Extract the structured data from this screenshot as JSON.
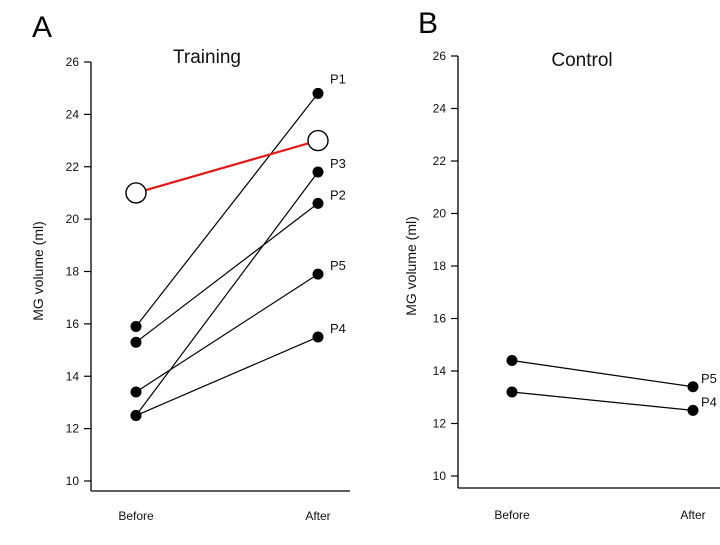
{
  "chart_data": [
    {
      "type": "line",
      "panel_letter": "A",
      "title": "Training",
      "xlabel": "",
      "ylabel": "MG volume (ml)",
      "categories": [
        "Before",
        "After"
      ],
      "ylim": [
        10,
        26
      ],
      "yticks": [
        10,
        12,
        14,
        16,
        18,
        20,
        22,
        24,
        26
      ],
      "series": [
        {
          "name": "P1",
          "values": [
            15.9,
            24.8
          ],
          "color": "#000000",
          "marker": "filled"
        },
        {
          "name": "P3",
          "values": [
            12.5,
            21.8
          ],
          "color": "#000000",
          "marker": "filled"
        },
        {
          "name": "P2",
          "values": [
            15.3,
            20.6
          ],
          "color": "#000000",
          "marker": "filled"
        },
        {
          "name": "P5",
          "values": [
            13.4,
            17.9
          ],
          "color": "#000000",
          "marker": "filled"
        },
        {
          "name": "P4",
          "values": [
            12.5,
            15.5
          ],
          "color": "#000000",
          "marker": "filled"
        },
        {
          "name": "",
          "values": [
            21.0,
            23.0
          ],
          "color": "#e01b1b",
          "marker": "open"
        }
      ]
    },
    {
      "type": "line",
      "panel_letter": "B",
      "title": "Control",
      "xlabel": "",
      "ylabel": "MG volume (ml)",
      "categories": [
        "Before",
        "After"
      ],
      "ylim": [
        10,
        26
      ],
      "yticks": [
        10,
        12,
        14,
        16,
        18,
        20,
        22,
        24,
        26
      ],
      "series": [
        {
          "name": "P5",
          "values": [
            14.4,
            13.4
          ],
          "color": "#000000",
          "marker": "filled"
        },
        {
          "name": "P4",
          "values": [
            13.2,
            12.5
          ],
          "color": "#000000",
          "marker": "filled"
        }
      ]
    }
  ]
}
